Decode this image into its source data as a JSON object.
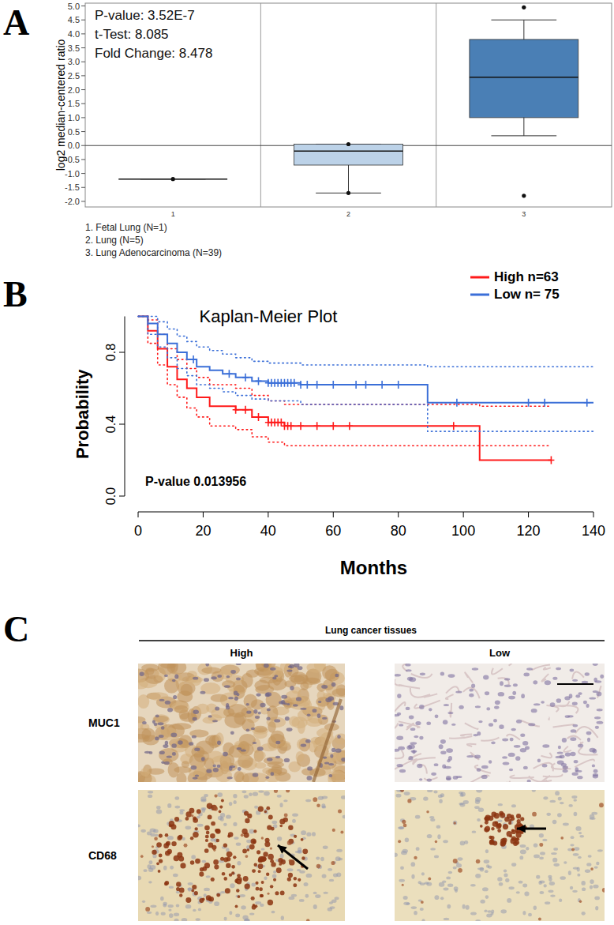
{
  "panel_labels": [
    "A",
    "B",
    "C"
  ],
  "chart_data": [
    {
      "type": "box",
      "y_label": "log2 median-centered ratio",
      "annotations": [
        "P-value: 3.52E-7",
        "t-Test: 8.085",
        "Fold Change: 8.478"
      ],
      "categories": [
        "1",
        "2",
        "3"
      ],
      "category_names": [
        "1. Fetal Lung (N=1)",
        "2. Lung (N=5)",
        "3. Lung Adenocarcinoma (N=39)"
      ],
      "whisker_low": [
        -1.2,
        -1.7,
        0.35
      ],
      "q1": [
        -1.2,
        -0.7,
        1.0
      ],
      "median": [
        -1.2,
        -0.2,
        2.45
      ],
      "q3": [
        -1.2,
        0.05,
        3.8
      ],
      "whisker_high": [
        -1.2,
        0.05,
        4.5
      ],
      "points": [
        [
          -1.2
        ],
        [
          -1.7,
          0.05
        ],
        [
          -1.8,
          4.95
        ]
      ],
      "colors": [
        "#1f4e79",
        "#bcd2e8",
        "#4a7fb5"
      ],
      "ylim": [
        -2.2,
        5.1
      ],
      "yticks": [
        {
          "value": -2,
          "label": "-2.0"
        },
        -1.5,
        {
          "value": -1,
          "label": "-1.0"
        },
        -0.5,
        {
          "value": 0,
          "label": "0.0"
        },
        0.5,
        {
          "value": 1,
          "label": "1.0"
        },
        1.5,
        {
          "value": 2,
          "label": "2.0"
        },
        2.5,
        {
          "value": 3,
          "label": "3.0"
        },
        3.5,
        {
          "value": 4,
          "label": "4.0"
        },
        4.5,
        {
          "value": 5,
          "label": "5.0"
        }
      ],
      "grid": false
    },
    {
      "type": "survival",
      "title": "Kaplan-Meier Plot",
      "x_label": "Months",
      "y_label": "Probability",
      "annotations": [
        "P-value 0.013956"
      ],
      "xlim": [
        0,
        140
      ],
      "xticks": [
        0,
        20,
        40,
        60,
        80,
        100,
        120,
        140
      ],
      "ylim": [
        0,
        1
      ],
      "yticks": [
        {
          "value": 0,
          "label": "0.0"
        },
        0.4,
        0.8
      ],
      "legend": "top-right",
      "grid": false,
      "series": [
        {
          "name": "High n=63",
          "color": "#ff1a1a",
          "line_style": "solid",
          "x": [
            0,
            3,
            6,
            9,
            12,
            15,
            18,
            22,
            30,
            35,
            40,
            45,
            105,
            127
          ],
          "values": [
            1,
            0.92,
            0.82,
            0.72,
            0.65,
            0.6,
            0.55,
            0.5,
            0.48,
            0.44,
            0.41,
            0.39,
            0.2,
            0.2
          ],
          "ci_upper": [
            1,
            0.98,
            0.9,
            0.82,
            0.76,
            0.71,
            0.66,
            0.62,
            0.6,
            0.56,
            0.53,
            0.51,
            0.5,
            0.5
          ],
          "ci_lower": [
            1,
            0.85,
            0.73,
            0.62,
            0.55,
            0.49,
            0.44,
            0.39,
            0.37,
            0.33,
            0.3,
            0.28,
            0.28,
            0.28
          ],
          "censor_x": [
            30,
            33,
            37,
            40,
            41,
            42,
            43,
            44,
            45,
            46,
            47,
            50,
            55,
            60,
            65,
            97,
            127
          ]
        },
        {
          "name": "Low n= 75",
          "color": "#3b6fd8",
          "line_style": "solid",
          "x": [
            0,
            3,
            6,
            9,
            12,
            15,
            18,
            22,
            26,
            30,
            35,
            40,
            50,
            89,
            140
          ],
          "values": [
            1,
            0.96,
            0.9,
            0.85,
            0.8,
            0.76,
            0.72,
            0.7,
            0.68,
            0.66,
            0.64,
            0.63,
            0.62,
            0.52,
            0.52
          ],
          "ci_upper": [
            1,
            1,
            0.97,
            0.93,
            0.89,
            0.86,
            0.83,
            0.81,
            0.79,
            0.77,
            0.75,
            0.74,
            0.73,
            0.72,
            0.72
          ],
          "ci_lower": [
            1,
            0.9,
            0.83,
            0.77,
            0.71,
            0.67,
            0.62,
            0.6,
            0.58,
            0.56,
            0.54,
            0.53,
            0.51,
            0.36,
            0.36
          ],
          "censor_x": [
            17,
            28,
            33,
            37,
            40,
            41,
            42,
            43,
            44,
            45,
            46,
            47,
            48,
            50,
            52,
            55,
            60,
            67,
            70,
            75,
            80,
            98,
            120,
            125,
            138
          ]
        }
      ]
    }
  ],
  "panel_c": {
    "title": "Lung cancer tissues",
    "columns": [
      "High",
      "Low"
    ],
    "rows": [
      "MUC1",
      "CD68"
    ]
  }
}
